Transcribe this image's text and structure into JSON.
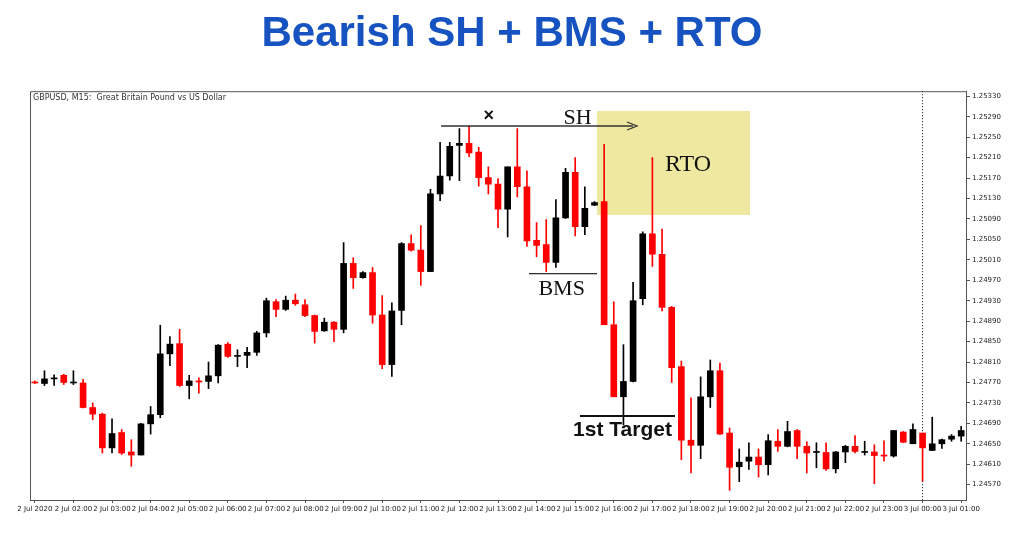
{
  "chart_data": {
    "type": "candlestick",
    "title": "Bearish SH + BMS + RTO",
    "subtitle": "GBPUSD, M15:  Great Britain Pound vs US Dollar",
    "categories": [
      "2 Jul 2020",
      null,
      null,
      null,
      "2 Jul 02:00",
      null,
      null,
      null,
      "2 Jul 03:00",
      null,
      null,
      null,
      "2 Jul 04:00",
      null,
      null,
      null,
      "2 Jul 05:00",
      null,
      null,
      null,
      "2 Jul 06:00",
      null,
      null,
      null,
      "2 Jul 07:00",
      null,
      null,
      null,
      "2 Jul 08:00",
      null,
      null,
      null,
      "2 Jul 09:00",
      null,
      null,
      null,
      "2 Jul 10:00",
      null,
      null,
      null,
      "2 Jul 11:00",
      null,
      null,
      null,
      "2 Jul 12:00",
      null,
      null,
      null,
      "2 Jul 13:00",
      null,
      null,
      null,
      "2 Jul 14:00",
      null,
      null,
      null,
      "2 Jul 15:00",
      null,
      null,
      null,
      "2 Jul 16:00",
      null,
      null,
      null,
      "2 Jul 17:00",
      null,
      null,
      null,
      "2 Jul 18:00",
      null,
      null,
      null,
      "2 Jul 19:00",
      null,
      null,
      null,
      "2 Jul 20:00",
      null,
      null,
      null,
      "2 Jul 21:00",
      null,
      null,
      null,
      "2 Jul 22:00",
      null,
      null,
      null,
      "2 Jul 23:00",
      null,
      null,
      null,
      "3 Jul 00:00",
      null,
      null,
      null,
      "3 Jul 01:00"
    ],
    "ohlc": [
      [
        1.24771,
        1.24773,
        1.24768,
        1.24769
      ],
      [
        1.24768,
        1.24793,
        1.24764,
        1.24777
      ],
      [
        1.24777,
        1.24785,
        1.24764,
        1.24779
      ],
      [
        1.24784,
        1.24786,
        1.24766,
        1.2477
      ],
      [
        1.24769,
        1.24793,
        1.24766,
        1.2477
      ],
      [
        1.24769,
        1.24776,
        1.2472,
        1.24721
      ],
      [
        1.24721,
        1.2473,
        1.24697,
        1.24708
      ],
      [
        1.24708,
        1.2471,
        1.24632,
        1.24642
      ],
      [
        1.24642,
        1.24699,
        1.24632,
        1.2467
      ],
      [
        1.24672,
        1.24678,
        1.24629,
        1.24632
      ],
      [
        1.24634,
        1.24658,
        1.24606,
        1.24628
      ],
      [
        1.24628,
        1.2469,
        1.24628,
        1.24689
      ],
      [
        1.24689,
        1.24723,
        1.24669,
        1.24707
      ],
      [
        1.24707,
        1.24882,
        1.24701,
        1.24826
      ],
      [
        1.24826,
        1.2486,
        1.24803,
        1.24845
      ],
      [
        1.24846,
        1.24874,
        1.24762,
        1.24764
      ],
      [
        1.24764,
        1.24784,
        1.24738,
        1.24773
      ],
      [
        1.24773,
        1.24779,
        1.24749,
        1.24771
      ],
      [
        1.24772,
        1.2481,
        1.24758,
        1.24783
      ],
      [
        1.24783,
        1.24844,
        1.24769,
        1.24843
      ],
      [
        1.24845,
        1.24848,
        1.24819,
        1.24821
      ],
      [
        1.24821,
        1.24834,
        1.24801,
        1.24823
      ],
      [
        1.24823,
        1.24839,
        1.24799,
        1.24829
      ],
      [
        1.24829,
        1.2487,
        1.24823,
        1.24867
      ],
      [
        1.24867,
        1.24935,
        1.24859,
        1.2493
      ],
      [
        1.24928,
        1.24932,
        1.24899,
        1.24913
      ],
      [
        1.24913,
        1.24939,
        1.24911,
        1.24931
      ],
      [
        1.24931,
        1.24943,
        1.24921,
        1.24924
      ],
      [
        1.24922,
        1.24932,
        1.24899,
        1.24901
      ],
      [
        1.24901,
        1.24902,
        1.24847,
        1.2487
      ],
      [
        1.24871,
        1.24896,
        1.2487,
        1.24888
      ],
      [
        1.24888,
        1.24889,
        1.2485,
        1.24874
      ],
      [
        1.24874,
        1.25044,
        1.24867,
        1.25003
      ],
      [
        1.25003,
        1.25014,
        1.24954,
        1.24975
      ],
      [
        1.24975,
        1.24987,
        1.24974,
        1.24985
      ],
      [
        1.24985,
        1.24995,
        1.24886,
        1.24902
      ],
      [
        1.24902,
        1.2494,
        1.24797,
        1.24805
      ],
      [
        1.24805,
        1.24926,
        1.24782,
        1.2491
      ],
      [
        1.24911,
        1.25044,
        1.24883,
        1.25042
      ],
      [
        1.25042,
        1.25059,
        1.25027,
        1.25029
      ],
      [
        1.25029,
        1.25077,
        1.2496,
        1.24987
      ],
      [
        1.24987,
        1.25148,
        1.24987,
        1.25139
      ],
      [
        1.25139,
        1.2524,
        1.25126,
        1.25174
      ],
      [
        1.25174,
        1.2524,
        1.25166,
        1.25232
      ],
      [
        1.25234,
        1.25267,
        1.25165,
        1.25238
      ],
      [
        1.25238,
        1.25272,
        1.25212,
        1.25219
      ],
      [
        1.25221,
        1.2523,
        1.25154,
        1.25171
      ],
      [
        1.25171,
        1.25192,
        1.25139,
        1.25158
      ],
      [
        1.25158,
        1.25169,
        1.25073,
        1.25109
      ],
      [
        1.25109,
        1.25192,
        1.25055,
        1.25192
      ],
      [
        1.25192,
        1.25267,
        1.25133,
        1.25153
      ],
      [
        1.25153,
        1.25184,
        1.25036,
        1.25047
      ],
      [
        1.25048,
        1.25083,
        1.25016,
        1.25038
      ],
      [
        1.2504,
        1.25089,
        1.24987,
        1.25005
      ],
      [
        1.25005,
        1.25128,
        1.24995,
        1.25092
      ],
      [
        1.25092,
        1.25189,
        1.25091,
        1.25181
      ],
      [
        1.25181,
        1.2521,
        1.25057,
        1.25075
      ],
      [
        1.25075,
        1.25153,
        1.25059,
        1.25111
      ],
      [
        1.25117,
        1.25124,
        1.25116,
        1.25122
      ],
      [
        1.25124,
        1.25236,
        1.24883,
        1.24883
      ],
      [
        1.24883,
        1.24928,
        1.24742,
        1.24742
      ],
      [
        1.24742,
        1.24844,
        1.24687,
        1.24772
      ],
      [
        1.24772,
        1.24966,
        1.24771,
        1.2493
      ],
      [
        1.24934,
        1.25065,
        1.24922,
        1.25061
      ],
      [
        1.25061,
        1.2521,
        1.24997,
        1.25021
      ],
      [
        1.25021,
        1.2507,
        1.2491,
        1.24917
      ],
      [
        1.24917,
        1.24919,
        1.2477,
        1.24799
      ],
      [
        1.24801,
        1.24812,
        1.24619,
        1.24657
      ],
      [
        1.24657,
        1.2474,
        1.24593,
        1.24647
      ],
      [
        1.24647,
        1.24781,
        1.24621,
        1.24742
      ],
      [
        1.24742,
        1.24814,
        1.24721,
        1.24793
      ],
      [
        1.24793,
        1.24808,
        1.24668,
        1.24669
      ],
      [
        1.24671,
        1.24681,
        1.24559,
        1.24604
      ],
      [
        1.24605,
        1.2464,
        1.24576,
        1.24614
      ],
      [
        1.24616,
        1.24652,
        1.246,
        1.24624
      ],
      [
        1.24624,
        1.2464,
        1.24585,
        1.24609
      ],
      [
        1.24609,
        1.24668,
        1.24589,
        1.24656
      ],
      [
        1.24655,
        1.24678,
        1.24635,
        1.24645
      ],
      [
        1.24645,
        1.24694,
        1.24644,
        1.24674
      ],
      [
        1.24676,
        1.24678,
        1.24621,
        1.24645
      ],
      [
        1.24645,
        1.24654,
        1.24593,
        1.24632
      ],
      [
        1.24633,
        1.24652,
        1.24603,
        1.24635
      ],
      [
        1.24633,
        1.24652,
        1.24598,
        1.24601
      ],
      [
        1.24601,
        1.24635,
        1.24593,
        1.24634
      ],
      [
        1.24634,
        1.24647,
        1.24613,
        1.24645
      ],
      [
        1.24645,
        1.24666,
        1.24632,
        1.24635
      ],
      [
        1.24633,
        1.24655,
        1.24628,
        1.24635
      ],
      [
        1.24634,
        1.24648,
        1.24572,
        1.24627
      ],
      [
        1.24628,
        1.24656,
        1.24616,
        1.24626
      ],
      [
        1.24626,
        1.24676,
        1.24624,
        1.24676
      ],
      [
        1.24673,
        1.24674,
        1.24652,
        1.24653
      ],
      [
        1.2465,
        1.24689,
        1.2465,
        1.24678
      ],
      [
        1.24671,
        1.24671,
        1.24577,
        1.24642
      ],
      [
        1.24637,
        1.24702,
        1.24637,
        1.2465
      ],
      [
        1.2465,
        1.24659,
        1.24641,
        1.24658
      ],
      [
        1.24659,
        1.24668,
        1.24655,
        1.24665
      ],
      [
        1.24665,
        1.24684,
        1.24655,
        1.24676
      ]
    ],
    "colors": [
      "#ff0000",
      "#000000",
      "#000000",
      "#ff0000",
      "#000000",
      "#ff0000",
      "#ff0000",
      "#ff0000",
      "#000000",
      "#ff0000",
      "#ff0000",
      "#000000",
      "#000000",
      "#000000",
      "#000000",
      "#ff0000",
      "#000000",
      "#ff0000",
      "#000000",
      "#000000",
      "#ff0000",
      "#000000",
      "#000000",
      "#000000",
      "#000000",
      "#ff0000",
      "#000000",
      "#ff0000",
      "#ff0000",
      "#ff0000",
      "#000000",
      "#ff0000",
      "#000000",
      "#ff0000",
      "#000000",
      "#ff0000",
      "#ff0000",
      "#000000",
      "#000000",
      "#ff0000",
      "#ff0000",
      "#000000",
      "#000000",
      "#000000",
      "#000000",
      "#ff0000",
      "#ff0000",
      "#ff0000",
      "#ff0000",
      "#000000",
      "#ff0000",
      "#ff0000",
      "#ff0000",
      "#ff0000",
      "#000000",
      "#000000",
      "#ff0000",
      "#000000",
      "#000000",
      "#ff0000",
      "#ff0000",
      "#000000",
      "#000000",
      "#000000",
      "#ff0000",
      "#ff0000",
      "#ff0000",
      "#ff0000",
      "#ff0000",
      "#000000",
      "#000000",
      "#ff0000",
      "#ff0000",
      "#000000",
      "#000000",
      "#ff0000",
      "#000000",
      "#ff0000",
      "#000000",
      "#ff0000",
      "#ff0000",
      "#000000",
      "#ff0000",
      "#000000",
      "#000000",
      "#ff0000",
      "#000000",
      "#ff0000",
      "#ff0000",
      "#000000",
      "#ff0000",
      "#000000",
      "#ff0000",
      "#000000",
      "#000000",
      "#000000",
      "#000000"
    ],
    "ylim": [
      1.2454,
      1.2534
    ],
    "yticks": [
      {
        "value": 1.2533,
        "label": "1.25330"
      },
      {
        "value": 1.2529,
        "label": "1.25290"
      },
      {
        "value": 1.2525,
        "label": "1.25250"
      },
      {
        "value": 1.2521,
        "label": "1.25210"
      },
      {
        "value": 1.2517,
        "label": "1.25170"
      },
      {
        "value": 1.2513,
        "label": "1.25130"
      },
      {
        "value": 1.2509,
        "label": "1.25090"
      },
      {
        "value": 1.2505,
        "label": "1.25050"
      },
      {
        "value": 1.2501,
        "label": "1.25010"
      },
      {
        "value": 1.2497,
        "label": "1.24970"
      },
      {
        "value": 1.2493,
        "label": "1.24930"
      },
      {
        "value": 1.2489,
        "label": "1.24890"
      },
      {
        "value": 1.2485,
        "label": "1.24850"
      },
      {
        "value": 1.2481,
        "label": "1.24810"
      },
      {
        "value": 1.2477,
        "label": "1.24770"
      },
      {
        "value": 1.2473,
        "label": "1.24730"
      },
      {
        "value": 1.2469,
        "label": "1.24690"
      },
      {
        "value": 1.2465,
        "label": "1.24650"
      },
      {
        "value": 1.2461,
        "label": "1.24610"
      },
      {
        "value": 1.2457,
        "label": "1.24570"
      }
    ],
    "ref_lines": [
      {
        "axis": "x",
        "value": "3 Jul 00:00",
        "color": "#000000",
        "line_style": "dotted"
      }
    ],
    "annotations": [
      "×",
      "SH",
      "RTO",
      "BMS",
      "1st Target"
    ]
  }
}
